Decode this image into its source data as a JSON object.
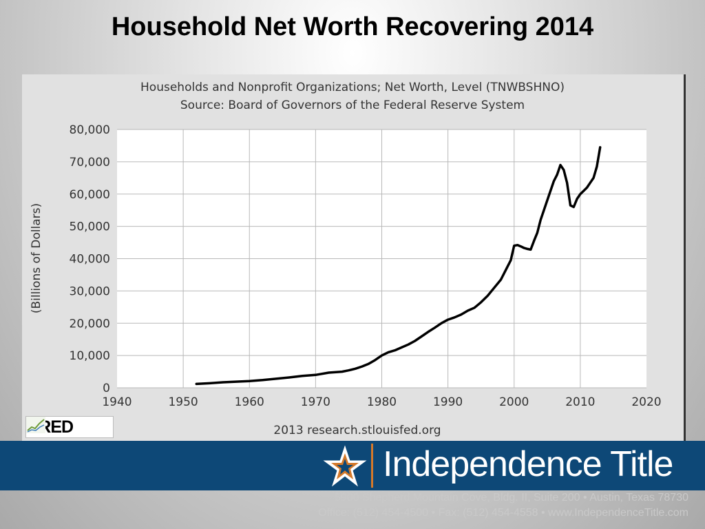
{
  "slide": {
    "title": "Household Net Worth Recovering 2014"
  },
  "chart_data": {
    "type": "line",
    "title": "Households and Nonprofit Organizations; Net Worth, Level (TNWBSHNO)",
    "subtitle": "Source: Board of Governors of the Federal Reserve System",
    "xlabel": "",
    "ylabel": "(Billions of Dollars)",
    "xlim": [
      1940,
      2020
    ],
    "ylim": [
      0,
      80000
    ],
    "x_ticks": [
      "1940",
      "1950",
      "1960",
      "1970",
      "1980",
      "1990",
      "2000",
      "2010",
      "2020"
    ],
    "y_ticks": [
      "0",
      "10,000",
      "20,000",
      "30,000",
      "40,000",
      "50,000",
      "60,000",
      "70,000",
      "80,000"
    ],
    "grid": true,
    "footer": "2013 research.stlouisfed.org",
    "series": [
      {
        "color": "#000000",
        "x": [
          1952,
          1954,
          1956,
          1958,
          1960,
          1962,
          1964,
          1966,
          1968,
          1970,
          1972,
          1974,
          1975,
          1976,
          1977,
          1978,
          1979,
          1980,
          1981,
          1982,
          1983,
          1984,
          1985,
          1986,
          1987,
          1988,
          1989,
          1990,
          1991,
          1992,
          1993,
          1994,
          1995,
          1996,
          1997,
          1998,
          1999,
          1999.5,
          2000,
          2000.5,
          2001,
          2001.5,
          2002,
          2002.5,
          2003,
          2003.5,
          2004,
          2005,
          2006,
          2006.5,
          2007,
          2007.5,
          2008,
          2008.5,
          2009,
          2009.5,
          2010,
          2010.5,
          2011,
          2011.5,
          2012,
          2012.5,
          2013
        ],
        "y": [
          1200,
          1400,
          1700,
          1900,
          2100,
          2400,
          2800,
          3200,
          3700,
          4000,
          4700,
          5000,
          5400,
          5900,
          6600,
          7400,
          8600,
          10000,
          11000,
          11600,
          12500,
          13400,
          14500,
          15900,
          17300,
          18600,
          20000,
          21100,
          21800,
          22700,
          23900,
          24800,
          26500,
          28500,
          31000,
          33500,
          37500,
          39500,
          44000,
          44200,
          43800,
          43300,
          43000,
          42800,
          45500,
          48000,
          52000,
          58000,
          64000,
          66000,
          69000,
          67500,
          63500,
          56500,
          56000,
          58500,
          60000,
          61000,
          62000,
          63500,
          65000,
          68500,
          74500
        ]
      }
    ]
  },
  "fred": {
    "logo_text": "FRED"
  },
  "banner": {
    "brand": "Independence Title",
    "address_line": "5900 Shepherd Mountain Cove, Bldg. II, Suite 200 • Austin, Texas 78730",
    "phone_line": "Office: (512) 454-4500  •  Fax: (512) 454-4558  •  www.IndependenceTitle.com"
  },
  "colors": {
    "banner": "#0d4877",
    "accent": "#d4792a",
    "line": "#000000"
  }
}
